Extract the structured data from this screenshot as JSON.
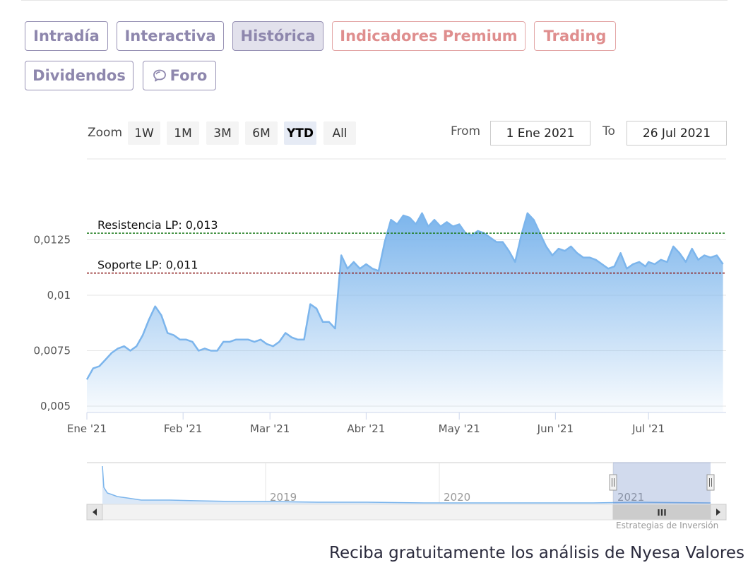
{
  "tabs": [
    {
      "label": "Intradía",
      "style": "normal"
    },
    {
      "label": "Interactiva",
      "style": "normal"
    },
    {
      "label": "Histórica",
      "style": "active"
    },
    {
      "label": "Indicadores Premium",
      "style": "premium"
    },
    {
      "label": "Trading",
      "style": "premium"
    },
    {
      "label": "Dividendos",
      "style": "normal"
    },
    {
      "label": "Foro",
      "style": "normal",
      "icon": "chat-bubble-icon"
    }
  ],
  "range_selector": {
    "zoom_label": "Zoom",
    "buttons": [
      "1W",
      "1M",
      "3M",
      "6M",
      "YTD",
      "All"
    ],
    "selected": "YTD",
    "from_label": "From",
    "from_value": "1 Ene 2021",
    "to_label": "To",
    "to_value": "26 Jul 2021"
  },
  "chart_data": {
    "type": "area",
    "title": "",
    "xlabel": "",
    "ylabel": "",
    "x_ticks": [
      "Ene '21",
      "Feb '21",
      "Mar '21",
      "Abr '21",
      "May '21",
      "Jun '21",
      "Jul '21"
    ],
    "y_ticks": [
      "0,005",
      "0,0075",
      "0,01",
      "0,0125"
    ],
    "ylim": [
      0.005,
      0.015
    ],
    "xlim": [
      "2021-01-01",
      "2021-07-26"
    ],
    "grid": true,
    "annotations": [
      {
        "label": "Resistencia LP: 0,013",
        "value": 0.0128,
        "color": "#1a7a1a"
      },
      {
        "label": "Soporte LP: 0,011",
        "value": 0.011,
        "color": "#8b1a1a"
      }
    ],
    "series": [
      {
        "color": "#7cb5ec",
        "points": [
          [
            "2021-01-01",
            0.0062
          ],
          [
            "2021-01-03",
            0.0067
          ],
          [
            "2021-01-05",
            0.0068
          ],
          [
            "2021-01-07",
            0.0071
          ],
          [
            "2021-01-09",
            0.0074
          ],
          [
            "2021-01-11",
            0.0076
          ],
          [
            "2021-01-13",
            0.0077
          ],
          [
            "2021-01-15",
            0.0075
          ],
          [
            "2021-01-17",
            0.0077
          ],
          [
            "2021-01-19",
            0.0082
          ],
          [
            "2021-01-21",
            0.0089
          ],
          [
            "2021-01-23",
            0.0095
          ],
          [
            "2021-01-25",
            0.0091
          ],
          [
            "2021-01-27",
            0.0083
          ],
          [
            "2021-01-29",
            0.0082
          ],
          [
            "2021-01-31",
            0.008
          ],
          [
            "2021-02-02",
            0.008
          ],
          [
            "2021-02-04",
            0.0079
          ],
          [
            "2021-02-06",
            0.0075
          ],
          [
            "2021-02-08",
            0.0076
          ],
          [
            "2021-02-10",
            0.0075
          ],
          [
            "2021-02-12",
            0.0075
          ],
          [
            "2021-02-14",
            0.0079
          ],
          [
            "2021-02-16",
            0.0079
          ],
          [
            "2021-02-18",
            0.008
          ],
          [
            "2021-02-20",
            0.008
          ],
          [
            "2021-02-22",
            0.008
          ],
          [
            "2021-02-24",
            0.0079
          ],
          [
            "2021-02-26",
            0.008
          ],
          [
            "2021-02-28",
            0.0078
          ],
          [
            "2021-03-02",
            0.0077
          ],
          [
            "2021-03-04",
            0.0079
          ],
          [
            "2021-03-06",
            0.0083
          ],
          [
            "2021-03-08",
            0.0081
          ],
          [
            "2021-03-10",
            0.008
          ],
          [
            "2021-03-12",
            0.008
          ],
          [
            "2021-03-14",
            0.0096
          ],
          [
            "2021-03-16",
            0.0094
          ],
          [
            "2021-03-18",
            0.0088
          ],
          [
            "2021-03-20",
            0.0088
          ],
          [
            "2021-03-22",
            0.0085
          ],
          [
            "2021-03-23",
            0.0102
          ],
          [
            "2021-03-24",
            0.0118
          ],
          [
            "2021-03-26",
            0.0112
          ],
          [
            "2021-03-28",
            0.0115
          ],
          [
            "2021-03-30",
            0.0112
          ],
          [
            "2021-04-01",
            0.0114
          ],
          [
            "2021-04-03",
            0.0112
          ],
          [
            "2021-04-05",
            0.0111
          ],
          [
            "2021-04-07",
            0.0124
          ],
          [
            "2021-04-09",
            0.0134
          ],
          [
            "2021-04-11",
            0.0132
          ],
          [
            "2021-04-13",
            0.0136
          ],
          [
            "2021-04-15",
            0.0135
          ],
          [
            "2021-04-17",
            0.0132
          ],
          [
            "2021-04-19",
            0.0137
          ],
          [
            "2021-04-21",
            0.0131
          ],
          [
            "2021-04-23",
            0.0134
          ],
          [
            "2021-04-25",
            0.0131
          ],
          [
            "2021-04-27",
            0.0133
          ],
          [
            "2021-04-29",
            0.0131
          ],
          [
            "2021-05-01",
            0.0132
          ],
          [
            "2021-05-03",
            0.0128
          ],
          [
            "2021-05-05",
            0.0127
          ],
          [
            "2021-05-07",
            0.0129
          ],
          [
            "2021-05-09",
            0.0128
          ],
          [
            "2021-05-11",
            0.0126
          ],
          [
            "2021-05-13",
            0.0124
          ],
          [
            "2021-05-15",
            0.0124
          ],
          [
            "2021-05-17",
            0.012
          ],
          [
            "2021-05-19",
            0.0115
          ],
          [
            "2021-05-21",
            0.0127
          ],
          [
            "2021-05-23",
            0.0137
          ],
          [
            "2021-05-25",
            0.0134
          ],
          [
            "2021-05-27",
            0.0128
          ],
          [
            "2021-05-29",
            0.0122
          ],
          [
            "2021-05-31",
            0.0118
          ],
          [
            "2021-06-02",
            0.0121
          ],
          [
            "2021-06-04",
            0.012
          ],
          [
            "2021-06-06",
            0.0122
          ],
          [
            "2021-06-08",
            0.0119
          ],
          [
            "2021-06-10",
            0.0117
          ],
          [
            "2021-06-12",
            0.0117
          ],
          [
            "2021-06-14",
            0.0116
          ],
          [
            "2021-06-16",
            0.0114
          ],
          [
            "2021-06-18",
            0.0112
          ],
          [
            "2021-06-20",
            0.0113
          ],
          [
            "2021-06-22",
            0.0119
          ],
          [
            "2021-06-24",
            0.0112
          ],
          [
            "2021-06-26",
            0.0114
          ],
          [
            "2021-06-28",
            0.0115
          ],
          [
            "2021-06-30",
            0.0113
          ],
          [
            "2021-07-01",
            0.0115
          ],
          [
            "2021-07-03",
            0.0114
          ],
          [
            "2021-07-05",
            0.0116
          ],
          [
            "2021-07-07",
            0.0115
          ],
          [
            "2021-07-09",
            0.0122
          ],
          [
            "2021-07-11",
            0.0119
          ],
          [
            "2021-07-13",
            0.0115
          ],
          [
            "2021-07-15",
            0.0121
          ],
          [
            "2021-07-17",
            0.0116
          ],
          [
            "2021-07-19",
            0.0118
          ],
          [
            "2021-07-21",
            0.0117
          ],
          [
            "2021-07-23",
            0.0118
          ],
          [
            "2021-07-25",
            0.0114
          ]
        ]
      }
    ],
    "navigator": {
      "labels": [
        "2019",
        "2020",
        "2021"
      ],
      "window_label": "III",
      "credit": "Estrategias de Inversión"
    }
  },
  "footer": {
    "text": "Reciba gratuitamente los análisis de Nyesa Valores"
  }
}
